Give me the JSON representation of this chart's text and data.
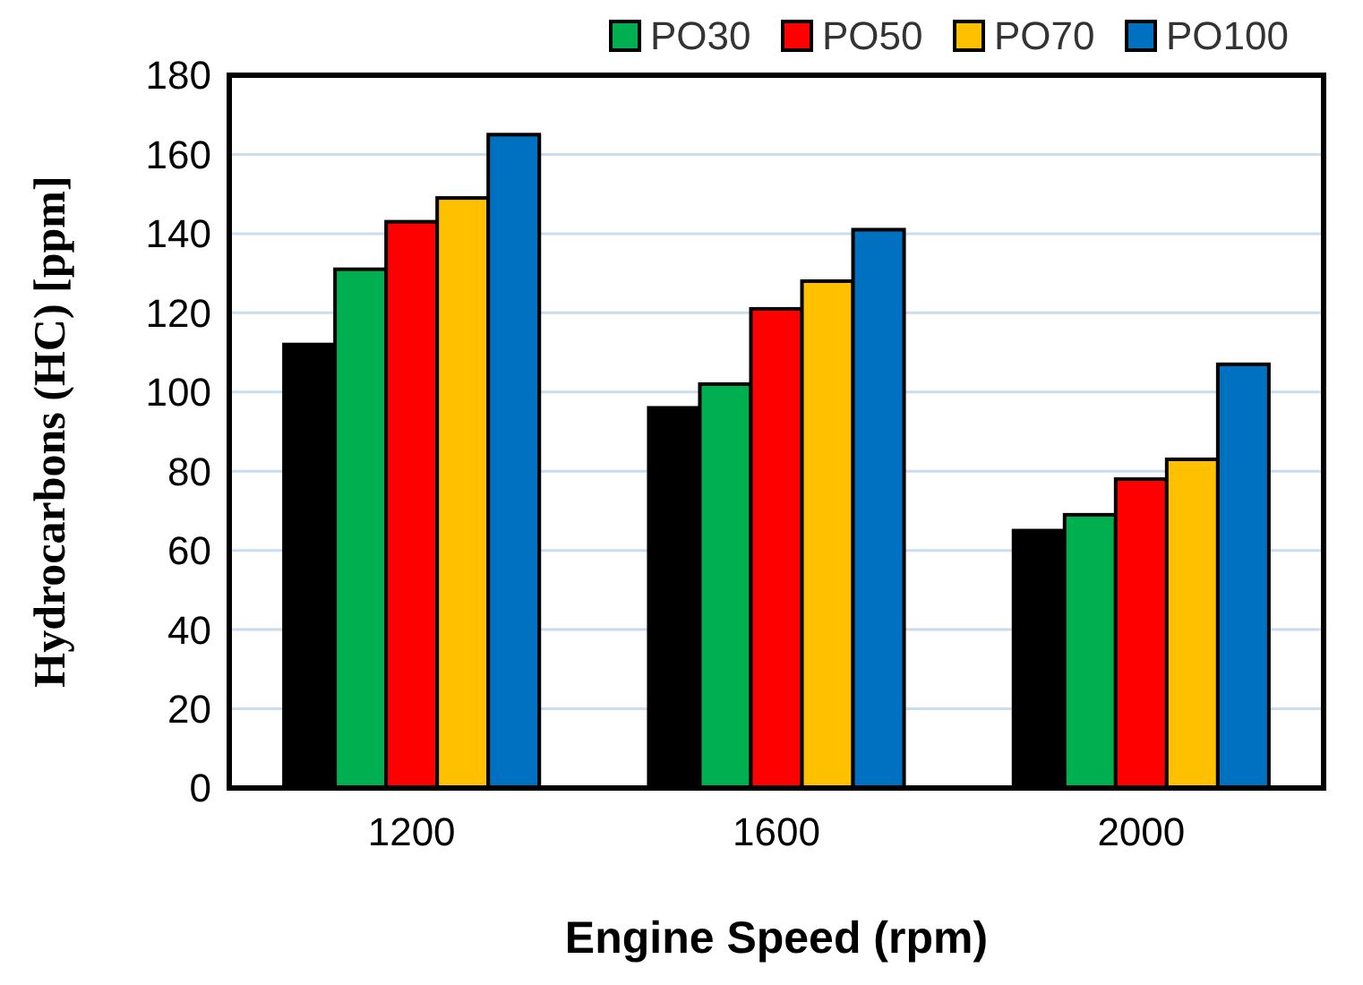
{
  "chart_data": {
    "type": "bar",
    "xlabel": "Engine Speed (rpm)",
    "ylabel": "Hydrocarbons (HC) [ppm]",
    "categories": [
      "1200",
      "1600",
      "2000"
    ],
    "series": [
      {
        "color": "#000000",
        "values": [
          112,
          96,
          65
        ]
      },
      {
        "name": "PO30",
        "color": "#00b050",
        "values": [
          131,
          102,
          69
        ]
      },
      {
        "name": "PO50",
        "color": "#ff0000",
        "values": [
          143,
          121,
          78
        ]
      },
      {
        "name": "PO70",
        "color": "#ffc000",
        "values": [
          149,
          128,
          83
        ]
      },
      {
        "name": "PO100",
        "color": "#0070c0",
        "values": [
          165,
          141,
          107
        ]
      }
    ],
    "ylim": [
      0,
      180
    ],
    "yticks": [
      0,
      20,
      40,
      60,
      80,
      100,
      120,
      140,
      160,
      180
    ],
    "grid": "y",
    "legend": "top"
  }
}
